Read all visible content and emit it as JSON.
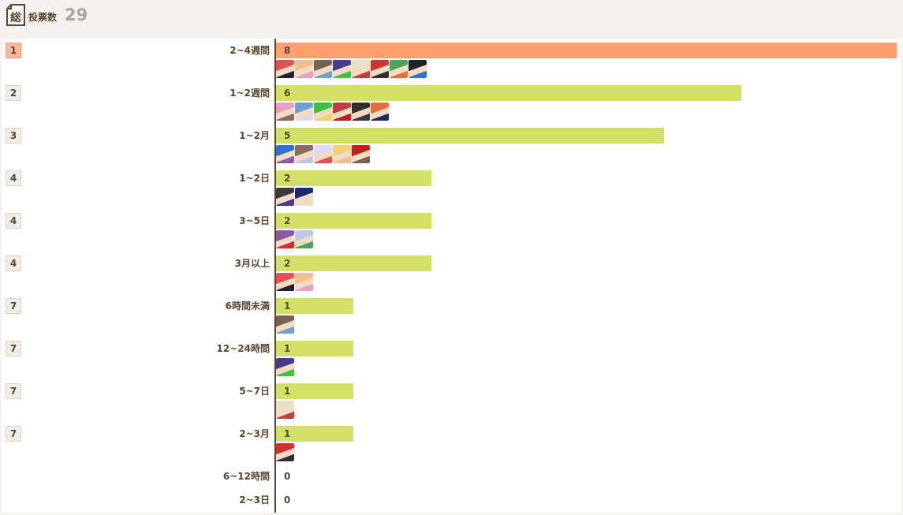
{
  "header": {
    "total_icon_char": "総",
    "total_label": "投票数",
    "total_value": "29"
  },
  "colors": {
    "bar_top": "#fe9f71",
    "bar_default": "#d2e068",
    "text": "#5a4630",
    "avatar_palette": [
      "#e85050",
      "#f0c090",
      "#7a6050",
      "#4a3a8a",
      "#e8e0c0",
      "#d03030",
      "#50a060",
      "#202030",
      "#e8a0c0",
      "#70a0d0",
      "#40c040",
      "#c04040",
      "#303030",
      "#e07040",
      "#3070d0",
      "#8a6a5a",
      "#e0d8f0",
      "#f0d070",
      "#c02020",
      "#3a3a3a",
      "#1a2a6a",
      "#8a5aa0",
      "#c0c8e0"
    ]
  },
  "chart_data": {
    "type": "bar",
    "orientation": "horizontal",
    "xlim": [
      0,
      8
    ],
    "grid": false,
    "rows": [
      {
        "rank": "1",
        "label": "2~4週間",
        "value": 8,
        "avatars": 8
      },
      {
        "rank": "2",
        "label": "1~2週間",
        "value": 6,
        "avatars": 6
      },
      {
        "rank": "3",
        "label": "1~2月",
        "value": 5,
        "avatars": 5
      },
      {
        "rank": "4",
        "label": "1~2日",
        "value": 2,
        "avatars": 2
      },
      {
        "rank": "4",
        "label": "3~5日",
        "value": 2,
        "avatars": 2
      },
      {
        "rank": "4",
        "label": "3月以上",
        "value": 2,
        "avatars": 2
      },
      {
        "rank": "7",
        "label": "6時間未満",
        "value": 1,
        "avatars": 1
      },
      {
        "rank": "7",
        "label": "12~24時間",
        "value": 1,
        "avatars": 1
      },
      {
        "rank": "7",
        "label": "5~7日",
        "value": 1,
        "avatars": 1
      },
      {
        "rank": "7",
        "label": "2~3月",
        "value": 1,
        "avatars": 1
      },
      {
        "rank": "",
        "label": "6~12時間",
        "value": 0,
        "avatars": 0
      },
      {
        "rank": "",
        "label": "2~3日",
        "value": 0,
        "avatars": 0
      }
    ]
  }
}
